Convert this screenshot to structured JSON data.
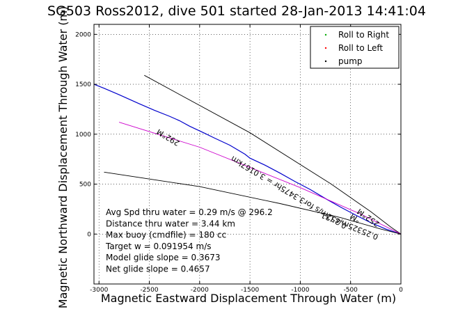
{
  "chart_data": {
    "type": "line",
    "title": "SG503 Ross2012, dive 501 started 28-Jan-2013 14:41:04",
    "xlabel": "Magnetic Eastward Displacement Through Water (m)",
    "ylabel": "Magnetic Northward Displacement Through Water (m)",
    "xlim": [
      -3050,
      0
    ],
    "ylim": [
      -500,
      2100
    ],
    "x_ticks": [
      -3000,
      -2500,
      -2000,
      -1500,
      -1000,
      -500,
      0
    ],
    "y_ticks": [
      0,
      500,
      1000,
      1500,
      2000
    ],
    "grid": true,
    "legend_position": "top-right",
    "legend": [
      {
        "label": "Roll to Right",
        "color": "#00aa00"
      },
      {
        "label": "Roll to Left",
        "color": "#ff0000"
      },
      {
        "label": "pump",
        "color": "#000000"
      }
    ],
    "series": [
      {
        "color": "#0000cc",
        "x": [
          -3050,
          -2950,
          -2800,
          -2700,
          -2600,
          -2450,
          -2300,
          -2200,
          -2100,
          -1950,
          -1850,
          -1700,
          -1550,
          -1500,
          -1350,
          -1200,
          -1050,
          -900,
          -750,
          -600,
          -450,
          -300,
          -150,
          -50,
          0
        ],
        "y": [
          1500,
          1460,
          1395,
          1350,
          1305,
          1240,
          1180,
          1135,
          1080,
          1010,
          960,
          890,
          800,
          760,
          690,
          610,
          525,
          445,
          355,
          270,
          190,
          115,
          50,
          15,
          0
        ]
      },
      {
        "color": "#000000",
        "x": [
          -2550,
          -1500,
          -700,
          -300,
          -100,
          0
        ],
        "y": [
          1590,
          1015,
          505,
          225,
          70,
          0
        ]
      },
      {
        "color": "#cc00cc",
        "x": [
          -2800,
          -2000,
          -1000,
          -400,
          0
        ],
        "y": [
          1120,
          870,
          465,
          200,
          0
        ]
      },
      {
        "color": "#000000",
        "x": [
          -2950,
          -2000,
          -1200,
          -600,
          -200,
          0
        ],
        "y": [
          620,
          475,
          305,
          165,
          50,
          0
        ]
      }
    ],
    "annotations": [
      {
        "text": "292°M",
        "x": -2300,
        "y": 990
      },
      {
        "text": "0.252m/s for3.3475hr = 3.0167km",
        "x": -1100,
        "y": 440
      },
      {
        "text": "0.25325m/s (31",
        "x": -500,
        "y": 105
      },
      {
        "text": "252°M",
        "x": -310,
        "y": 185
      },
      {
        "text": "°M",
        "x": -440,
        "y": 180
      }
    ],
    "stats": [
      "Avg Spd thru water =  0.29 m/s @ 296.2",
      "Distance thru water =  3.44 km",
      "Max buoy (cmdfile) = 180 cc",
      "Target w = 0.091954 m/s",
      "Model glide slope = 0.3673",
      "Net glide slope = 0.4657"
    ]
  }
}
